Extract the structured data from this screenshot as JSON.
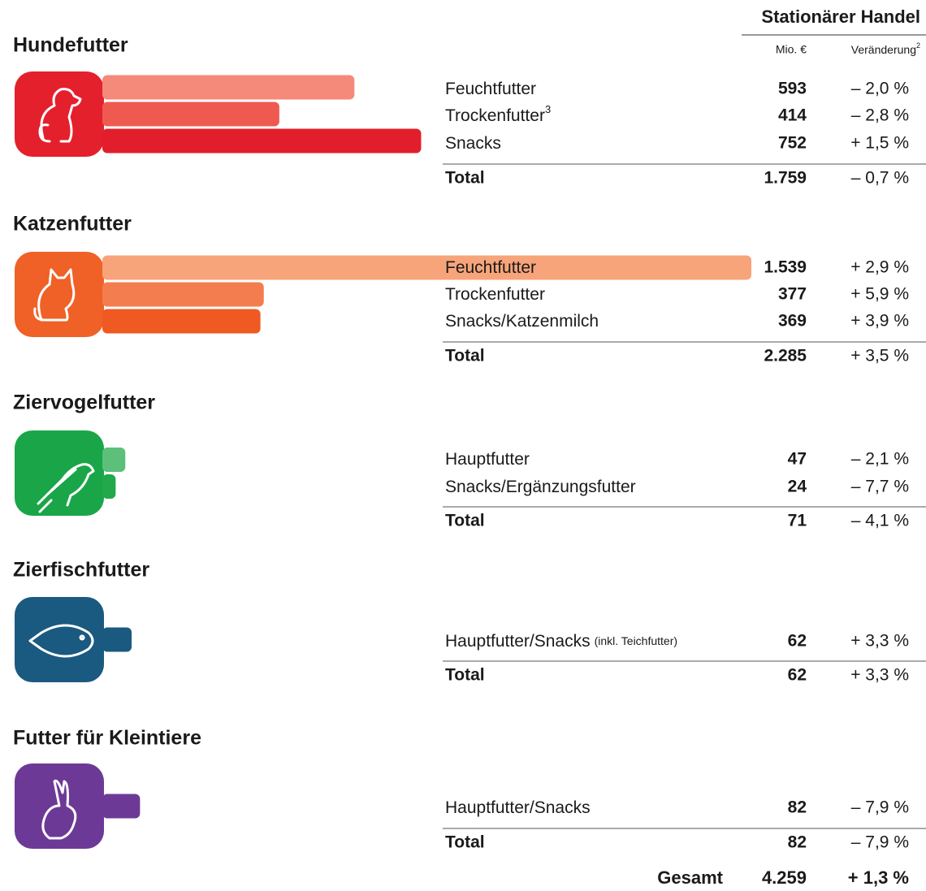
{
  "header": {
    "title": "Stationärer Handel",
    "col_value": "Mio. €",
    "col_change": "Veränderung",
    "col_change_sup": "2"
  },
  "sections": [
    {
      "title": "Hundefutter",
      "color": "#e4202c",
      "rows": [
        {
          "label": "Feuchtfutter",
          "value": 593,
          "change": "– 2,0 %",
          "color": "#f58a7a"
        },
        {
          "label": "Trockenfutter",
          "sup": "3",
          "value": 414,
          "change": "– 2,8 %",
          "color": "#ef5a50"
        },
        {
          "label": "Snacks",
          "value": 752,
          "change": "+ 1,5 %",
          "color": "#e31e2c"
        }
      ],
      "total": {
        "label": "Total",
        "value": 1759,
        "value_label": "1.759",
        "change": "– 0,7 %"
      }
    },
    {
      "title": "Katzenfutter",
      "color": "#ef6126",
      "rows": [
        {
          "label": "Feuchtfutter",
          "value": 1539,
          "value_label": "1.539",
          "change": "+ 2,9 %",
          "color": "#f7a47a"
        },
        {
          "label": "Trockenfutter",
          "value": 377,
          "change": "+ 5,9 %",
          "color": "#f37d4e"
        },
        {
          "label": "Snacks/Katzenmilch",
          "value": 369,
          "change": "+ 3,9 %",
          "color": "#ef5a23"
        }
      ],
      "total": {
        "label": "Total",
        "value": 2285,
        "value_label": "2.285",
        "change": "+ 3,5 %"
      }
    },
    {
      "title": "Ziervogelfutter",
      "color": "#1aa648",
      "rows": [
        {
          "label": "Hauptfutter",
          "value": 47,
          "change": "– 2,1 %",
          "color": "#5cc07a"
        },
        {
          "label": "Snacks/Ergänzungsfutter",
          "value": 24,
          "change": "– 7,7 %",
          "color": "#22a94b"
        }
      ],
      "total": {
        "label": "Total",
        "value": 71,
        "change": "– 4,1 %"
      }
    },
    {
      "title": "Zierfischfutter",
      "color": "#1b5a80",
      "rows": [
        {
          "label": "Hauptfutter/Snacks",
          "note": "(inkl. Teichfutter)",
          "value": 62,
          "change": "+ 3,3 %",
          "color": "#1b5a80"
        }
      ],
      "total": {
        "label": "Total",
        "value": 62,
        "change": "+ 3,3 %"
      }
    },
    {
      "title": "Futter für Kleintiere",
      "color": "#6d3996",
      "rows": [
        {
          "label": "Hauptfutter/Snacks",
          "value": 82,
          "change": "– 7,9 %",
          "color": "#6d3996"
        }
      ],
      "total": {
        "label": "Total",
        "value": 82,
        "change": "– 7,9 %"
      }
    }
  ],
  "grand_total": {
    "label": "Gesamt",
    "value": 4259,
    "value_label": "4.259",
    "change": "+ 1,3 %"
  }
}
